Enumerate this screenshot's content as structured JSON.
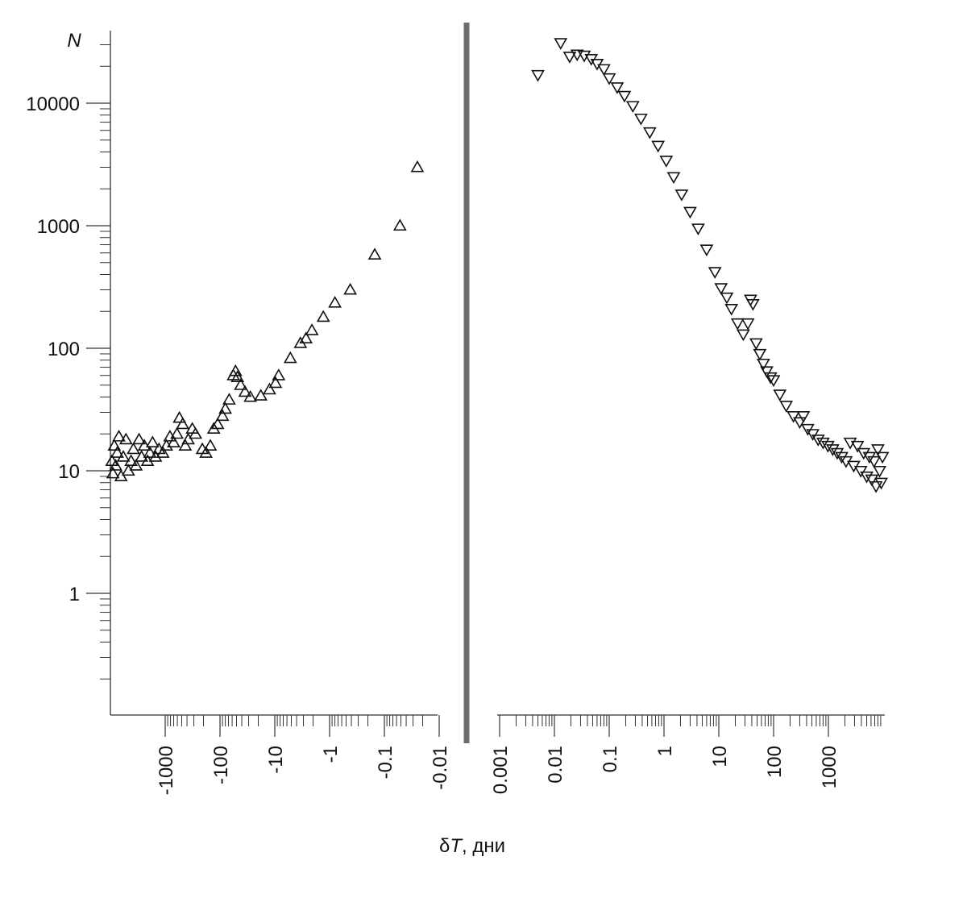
{
  "chart_data": {
    "type": "scatter",
    "y_axis": {
      "label": "N",
      "scale": "log",
      "ticks": [
        1,
        10,
        100,
        1000,
        10000
      ],
      "tick_labels": [
        "1",
        "10",
        "100",
        "1000",
        "10000"
      ],
      "range": [
        0.1,
        40000
      ]
    },
    "x_axis": {
      "label_symbol": "δ",
      "label_var": "T",
      "label_unit": ", дни",
      "scale": "log",
      "panels": [
        {
          "side": "before",
          "ticks": [
            -1000,
            -100,
            -10,
            -1,
            -0.1,
            -0.01
          ],
          "tick_labels": [
            "-1000",
            "-100",
            "-10",
            "-1",
            "-0.1",
            "-0.01"
          ],
          "range": [
            -10000,
            -0.01
          ]
        },
        {
          "side": "after",
          "ticks": [
            0.001,
            0.01,
            0.1,
            1,
            10,
            100,
            1000
          ],
          "tick_labels": [
            "0.001",
            "0.01",
            "0.1",
            "1",
            "10",
            "100",
            "1000"
          ],
          "range": [
            0.001,
            10000
          ]
        }
      ]
    },
    "grid": false,
    "legend": "none",
    "series": [
      {
        "marker": "triangle-up",
        "points": [
          [
            -0.025,
            3000
          ],
          [
            -0.052,
            1000
          ],
          [
            -0.15,
            580
          ],
          [
            -0.42,
            300
          ],
          [
            -0.8,
            235
          ],
          [
            -1.3,
            180
          ],
          [
            -2.1,
            140
          ],
          [
            -2.7,
            120
          ],
          [
            -3.4,
            110
          ],
          [
            -5.2,
            83
          ],
          [
            -8.5,
            60
          ],
          [
            -9.7,
            52
          ],
          [
            -12.5,
            46
          ],
          [
            -18,
            41
          ],
          [
            -28,
            40
          ],
          [
            -35,
            44
          ],
          [
            -42,
            50
          ],
          [
            -48,
            58
          ],
          [
            -52,
            65
          ],
          [
            -57,
            60
          ],
          [
            -68,
            38
          ],
          [
            -80,
            32
          ],
          [
            -90,
            28
          ],
          [
            -110,
            24
          ],
          [
            -130,
            22
          ],
          [
            -150,
            16
          ],
          [
            -180,
            14
          ],
          [
            -210,
            15
          ],
          [
            -280,
            20
          ],
          [
            -320,
            22
          ],
          [
            -380,
            18
          ],
          [
            -430,
            16
          ],
          [
            -480,
            24
          ],
          [
            -550,
            27
          ],
          [
            -610,
            20
          ],
          [
            -700,
            17
          ],
          [
            -820,
            19
          ],
          [
            -950,
            16
          ],
          [
            -1100,
            14
          ],
          [
            -1300,
            15
          ],
          [
            -1500,
            13
          ],
          [
            -1700,
            17
          ],
          [
            -1900,
            14
          ],
          [
            -2100,
            12
          ],
          [
            -2400,
            16
          ],
          [
            -2700,
            13
          ],
          [
            -3000,
            18
          ],
          [
            -3400,
            11
          ],
          [
            -3800,
            15
          ],
          [
            -4200,
            12
          ],
          [
            -4700,
            10
          ],
          [
            -5200,
            18
          ],
          [
            -5800,
            13
          ],
          [
            -6400,
            9
          ],
          [
            -7000,
            19
          ],
          [
            -7500,
            14
          ],
          [
            -8000,
            11
          ],
          [
            -8500,
            16
          ],
          [
            -9000,
            9.5
          ],
          [
            -9400,
            12
          ]
        ]
      },
      {
        "marker": "triangle-down",
        "points": [
          [
            0.005,
            17000
          ],
          [
            0.013,
            31000
          ],
          [
            0.019,
            24000
          ],
          [
            0.026,
            25000
          ],
          [
            0.035,
            24500
          ],
          [
            0.047,
            23000
          ],
          [
            0.06,
            21000
          ],
          [
            0.08,
            19000
          ],
          [
            0.1,
            16000
          ],
          [
            0.14,
            13500
          ],
          [
            0.19,
            11500
          ],
          [
            0.27,
            9500
          ],
          [
            0.38,
            7500
          ],
          [
            0.55,
            5800
          ],
          [
            0.78,
            4500
          ],
          [
            1.1,
            3400
          ],
          [
            1.5,
            2500
          ],
          [
            2.1,
            1800
          ],
          [
            3.0,
            1300
          ],
          [
            4.2,
            950
          ],
          [
            6.0,
            640
          ],
          [
            8.5,
            420
          ],
          [
            11,
            310
          ],
          [
            14,
            260
          ],
          [
            17,
            210
          ],
          [
            22,
            160
          ],
          [
            28,
            130
          ],
          [
            34,
            160
          ],
          [
            38,
            250
          ],
          [
            42,
            230
          ],
          [
            48,
            110
          ],
          [
            56,
            90
          ],
          [
            65,
            75
          ],
          [
            75,
            65
          ],
          [
            88,
            58
          ],
          [
            100,
            55
          ],
          [
            130,
            42
          ],
          [
            170,
            34
          ],
          [
            230,
            28
          ],
          [
            300,
            25
          ],
          [
            350,
            28
          ],
          [
            420,
            22
          ],
          [
            520,
            20
          ],
          [
            650,
            18
          ],
          [
            800,
            17
          ],
          [
            980,
            16
          ],
          [
            1200,
            15
          ],
          [
            1450,
            14
          ],
          [
            1750,
            13
          ],
          [
            2100,
            12
          ],
          [
            2500,
            17
          ],
          [
            2900,
            11
          ],
          [
            3400,
            16
          ],
          [
            3900,
            10
          ],
          [
            4400,
            14
          ],
          [
            5000,
            9
          ],
          [
            5600,
            13
          ],
          [
            6200,
            8.5
          ],
          [
            6800,
            12
          ],
          [
            7400,
            7.5
          ],
          [
            8000,
            15
          ],
          [
            8600,
            10
          ],
          [
            9200,
            8
          ],
          [
            9700,
            13
          ]
        ]
      }
    ]
  }
}
